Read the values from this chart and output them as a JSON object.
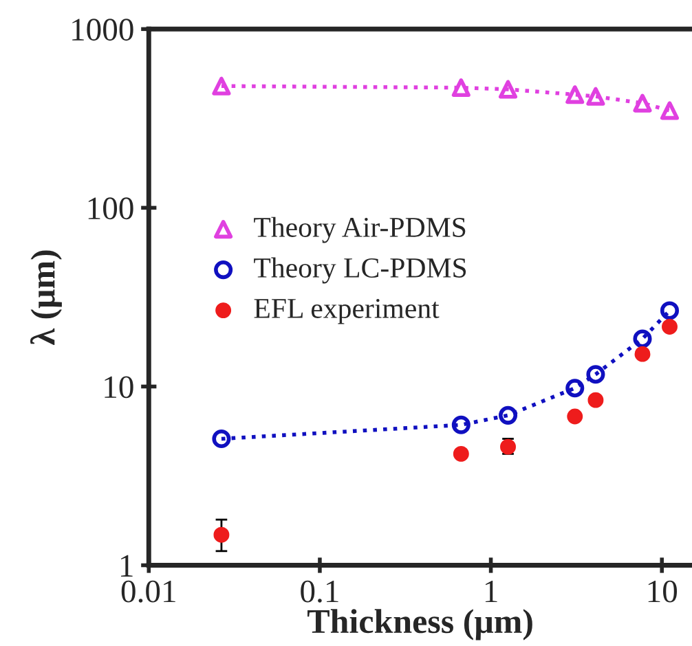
{
  "chart_data": {
    "type": "scatter",
    "xlabel": "Thickness (μm)",
    "ylabel": "λ (μm)",
    "log": "xy",
    "xlim": [
      0.01,
      15
    ],
    "xticks": [
      0.01,
      0.1,
      1,
      10
    ],
    "ylim": [
      1,
      1000
    ],
    "yticks": [
      1,
      10,
      100,
      1000
    ],
    "grid": false,
    "legend": "left",
    "series": [
      {
        "name": "Theory Air-PDMS",
        "type": "line",
        "marker": "triangle",
        "line_style": "dotted",
        "color": "#e040e0",
        "x": [
          0.0266,
          0.67,
          1.26,
          3.1,
          4.1,
          7.7,
          11.1
        ],
        "values": [
          480,
          470,
          460,
          430,
          420,
          385,
          350
        ]
      },
      {
        "name": "Theory LC-PDMS",
        "type": "line",
        "marker": "circle",
        "line_style": "dotted",
        "color": "#1010c0",
        "x": [
          0.0266,
          0.67,
          1.26,
          3.1,
          4.1,
          7.7,
          11.1
        ],
        "values": [
          5.1,
          6.1,
          6.9,
          9.8,
          11.7,
          18.5,
          26.6
        ]
      },
      {
        "name": "EFL experiment",
        "marker": "circle",
        "color": "#ee1c1c",
        "x": [
          0.0266,
          0.67,
          1.26,
          3.1,
          4.1,
          7.7,
          11.1
        ],
        "values": [
          1.48,
          4.2,
          4.6,
          6.8,
          8.4,
          15.2,
          21.6
        ],
        "errors": [
          [
            1.2,
            1.8
          ],
          null,
          [
            4.2,
            5.1
          ],
          null,
          null,
          null,
          null
        ]
      }
    ]
  }
}
